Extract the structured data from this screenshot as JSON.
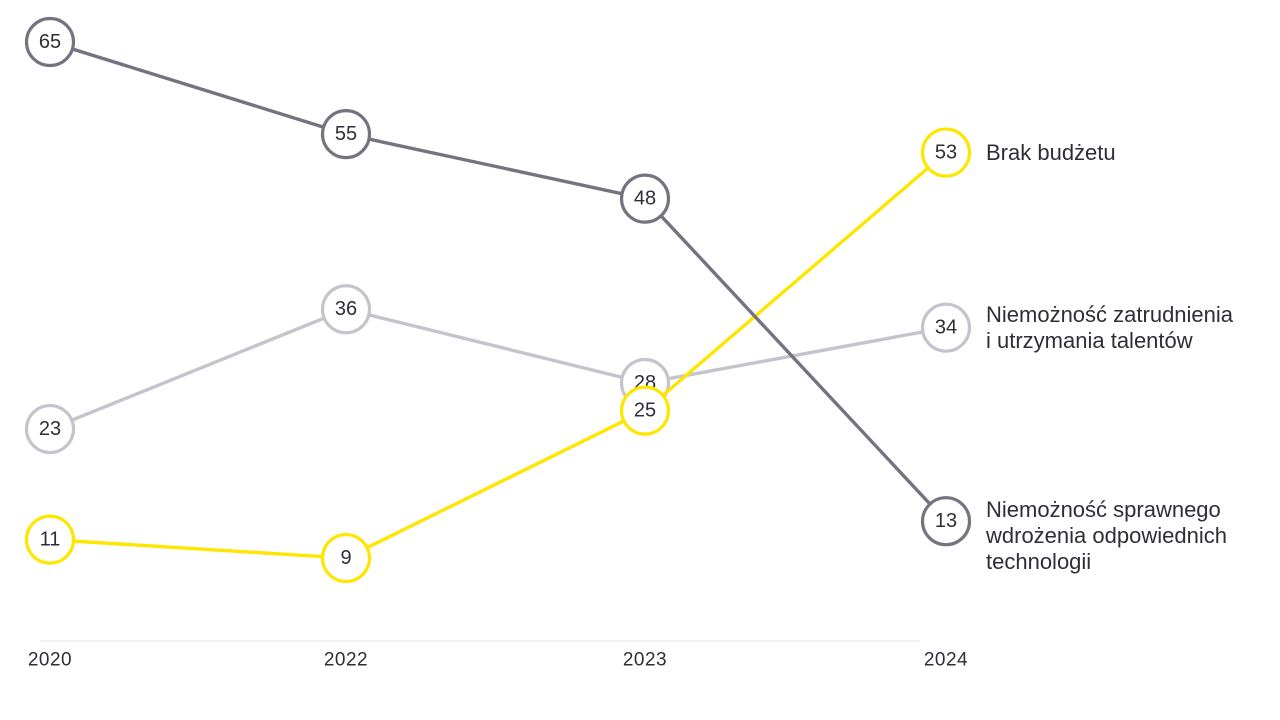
{
  "chart_data": {
    "type": "line",
    "title": "",
    "xlabel": "",
    "ylabel": "",
    "categories": [
      "2020",
      "2022",
      "2023",
      "2024"
    ],
    "series": [
      {
        "name": "Niemożność zatrudnienia i utrzymania talentów",
        "label_lines": [
          "Niemożność zatrudnienia",
          "i utrzymania talentów"
        ],
        "values": [
          23,
          36,
          28,
          34
        ],
        "color": "#C4C4CD"
      },
      {
        "name": "Brak budżetu",
        "label_lines": [
          "Brak budżetu"
        ],
        "values": [
          11,
          9,
          25,
          53
        ],
        "color": "#FFE600"
      },
      {
        "name": "Niemożność sprawnego wdrożenia odpowiednich technologii",
        "label_lines": [
          "Niemożność sprawnego",
          "wdrożenia odpowiednich",
          "technologii"
        ],
        "values": [
          65,
          55,
          48,
          13
        ],
        "color": "#747480"
      }
    ],
    "ylim": [
      0,
      65
    ],
    "grid": false,
    "legend_position": "right-of-last-point",
    "marker_fill": "#FFFFFF",
    "value_text_color": "#2E2E38",
    "tick_text_color": "#2E2E38",
    "label_text_color": "#2E2E38",
    "axis_line_color": "#E3E3E8",
    "background": "#FFFFFF"
  }
}
